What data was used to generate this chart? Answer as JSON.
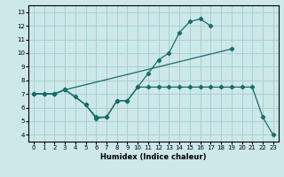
{
  "xlabel": "Humidex (Indice chaleur)",
  "bg_color": "#cde8e8",
  "grid_color": "#aacfcf",
  "line_color": "#1a6b6b",
  "xlim": [
    -0.5,
    23.5
  ],
  "ylim": [
    3.5,
    13.5
  ],
  "xticks": [
    0,
    1,
    2,
    3,
    4,
    5,
    6,
    7,
    8,
    9,
    10,
    11,
    12,
    13,
    14,
    15,
    16,
    17,
    18,
    19,
    20,
    21,
    22,
    23
  ],
  "yticks": [
    4,
    5,
    6,
    7,
    8,
    9,
    10,
    11,
    12,
    13
  ],
  "series": [
    {
      "x": [
        0,
        1,
        2,
        3,
        4,
        5,
        6,
        7,
        8,
        9,
        10,
        11,
        12,
        13,
        14,
        15,
        16,
        17
      ],
      "y": [
        7,
        7,
        7,
        7.3,
        6.8,
        6.2,
        5.3,
        5.3,
        6.5,
        6.5,
        7.5,
        8.5,
        9.5,
        10.0,
        11.5,
        12.3,
        12.5,
        12.0
      ]
    },
    {
      "x": [
        0,
        1,
        2,
        3,
        19
      ],
      "y": [
        7,
        7,
        7,
        7.3,
        10.3
      ]
    },
    {
      "x": [
        0,
        1,
        2,
        3,
        5,
        6,
        7,
        8,
        9,
        10,
        11,
        12,
        13,
        14,
        15,
        16,
        17,
        18,
        19,
        20,
        21,
        22,
        23
      ],
      "y": [
        7,
        7,
        7,
        7.3,
        6.2,
        5.2,
        5.3,
        6.5,
        6.5,
        7.5,
        7.5,
        7.5,
        7.5,
        7.5,
        7.5,
        7.5,
        7.5,
        7.5,
        7.5,
        7.5,
        7.5,
        5.3,
        4.0
      ]
    }
  ]
}
